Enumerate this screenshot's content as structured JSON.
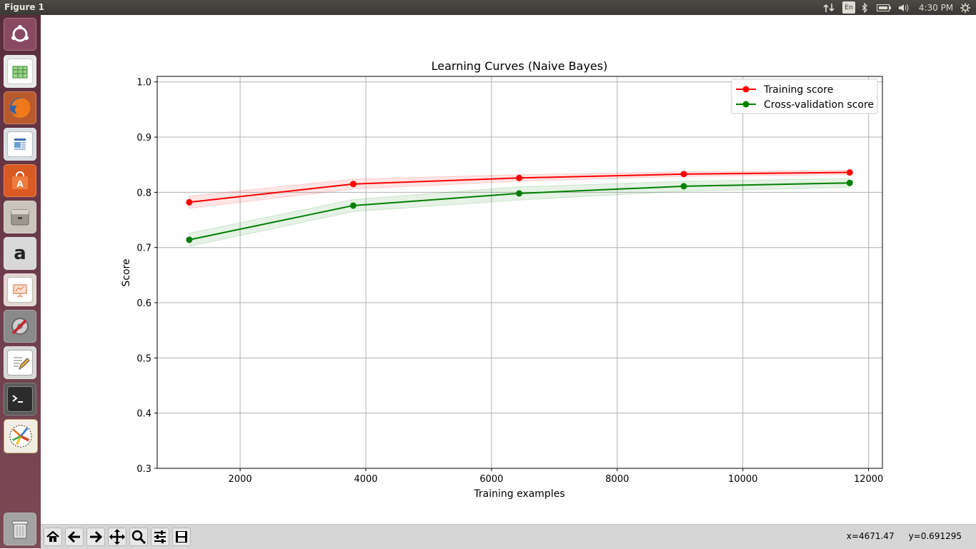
{
  "window": {
    "title": "Figure 1"
  },
  "tray": {
    "keyboard_layout": "En",
    "time": "4:30 PM"
  },
  "launcher": {
    "items": [
      {
        "name": "dash-home"
      },
      {
        "name": "libreoffice-calc"
      },
      {
        "name": "firefox"
      },
      {
        "name": "libreoffice-writer"
      },
      {
        "name": "ubuntu-software-center"
      },
      {
        "name": "files"
      },
      {
        "name": "amazon"
      },
      {
        "name": "libreoffice-impress"
      },
      {
        "name": "system-settings"
      },
      {
        "name": "text-editor"
      },
      {
        "name": "terminal"
      },
      {
        "name": "matplotlib-figure"
      },
      {
        "name": "trash"
      }
    ]
  },
  "toolbar": {
    "buttons": [
      "home",
      "back",
      "forward",
      "pan",
      "zoom",
      "configure-subplots",
      "save"
    ],
    "coord_x": "x=4671.47",
    "coord_y": "y=0.691295"
  },
  "chart_data": {
    "type": "line",
    "title": "Learning Curves (Naive Bayes)",
    "xlabel": "Training examples",
    "ylabel": "Score",
    "xlim": [
      680,
      12220
    ],
    "ylim": [
      0.3,
      1.01
    ],
    "xticks": [
      2000,
      4000,
      6000,
      8000,
      10000,
      12000
    ],
    "yticks": [
      0.3,
      0.4,
      0.5,
      0.6,
      0.7,
      0.8,
      0.9,
      1.0
    ],
    "grid": true,
    "legend_position": "top-right",
    "x": [
      1190,
      3800,
      6440,
      9060,
      11700
    ],
    "series": [
      {
        "name": "Training score",
        "color": "#ff0000",
        "values": [
          0.782,
          0.815,
          0.826,
          0.833,
          0.836
        ],
        "band": [
          0.011,
          0.009,
          0.006,
          0.004,
          0.004
        ]
      },
      {
        "name": "Cross-validation score",
        "color": "#008000",
        "values": [
          0.714,
          0.776,
          0.798,
          0.811,
          0.817
        ],
        "band": [
          0.012,
          0.011,
          0.012,
          0.009,
          0.008
        ]
      }
    ]
  }
}
